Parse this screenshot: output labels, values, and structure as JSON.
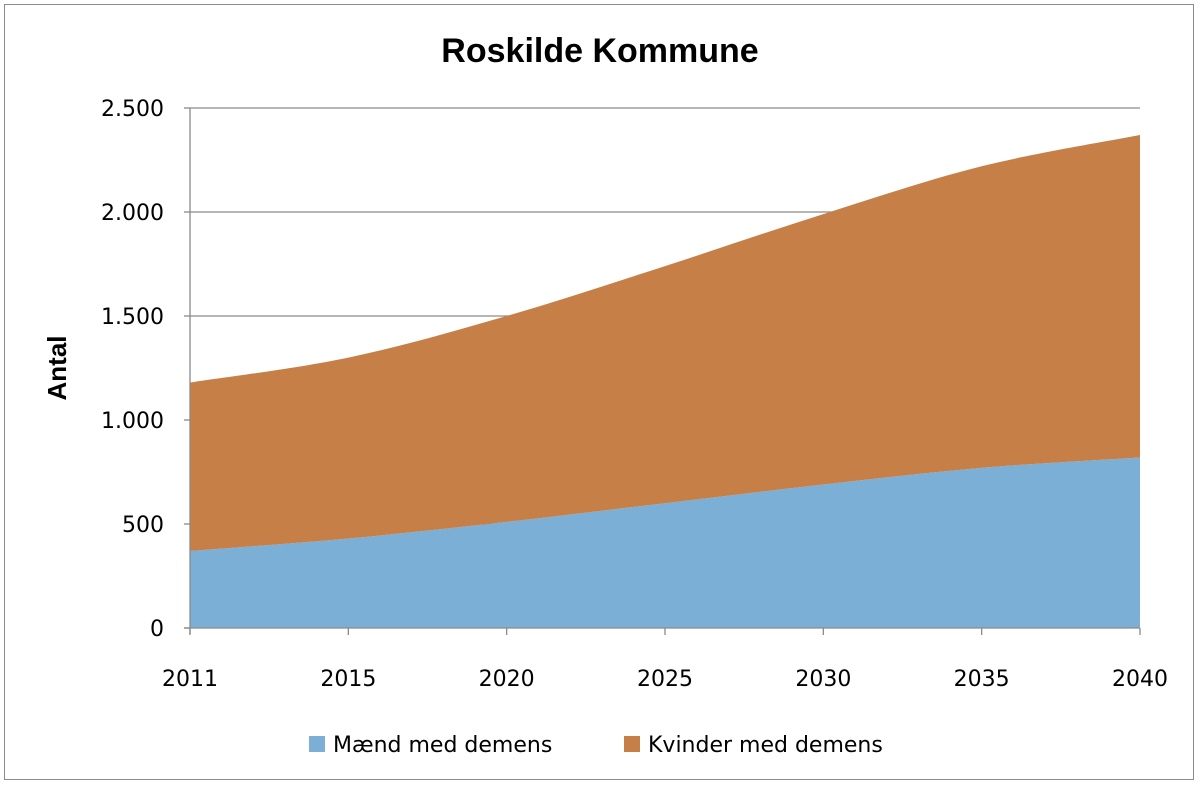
{
  "chart_data": {
    "type": "area",
    "stacked": true,
    "title": "Roskilde Kommune",
    "xlabel": "",
    "ylabel": "Antal",
    "x": [
      "2011",
      "2015",
      "2020",
      "2025",
      "2030",
      "2035",
      "2040"
    ],
    "ylim": [
      0,
      2500
    ],
    "yticks": [
      0,
      500,
      1000,
      1500,
      2000,
      2500
    ],
    "ytick_labels": [
      "0",
      "500",
      "1.000",
      "1.500",
      "2.000",
      "2.500"
    ],
    "grid": true,
    "legend_position": "bottom",
    "series": [
      {
        "name": "Mænd med demens",
        "color": "#7bafd6",
        "values": [
          370,
          430,
          510,
          600,
          690,
          770,
          820
        ]
      },
      {
        "name": "Kvinder med demens",
        "color": "#c77f48",
        "values": [
          810,
          870,
          990,
          1140,
          1300,
          1450,
          1550
        ]
      }
    ]
  }
}
